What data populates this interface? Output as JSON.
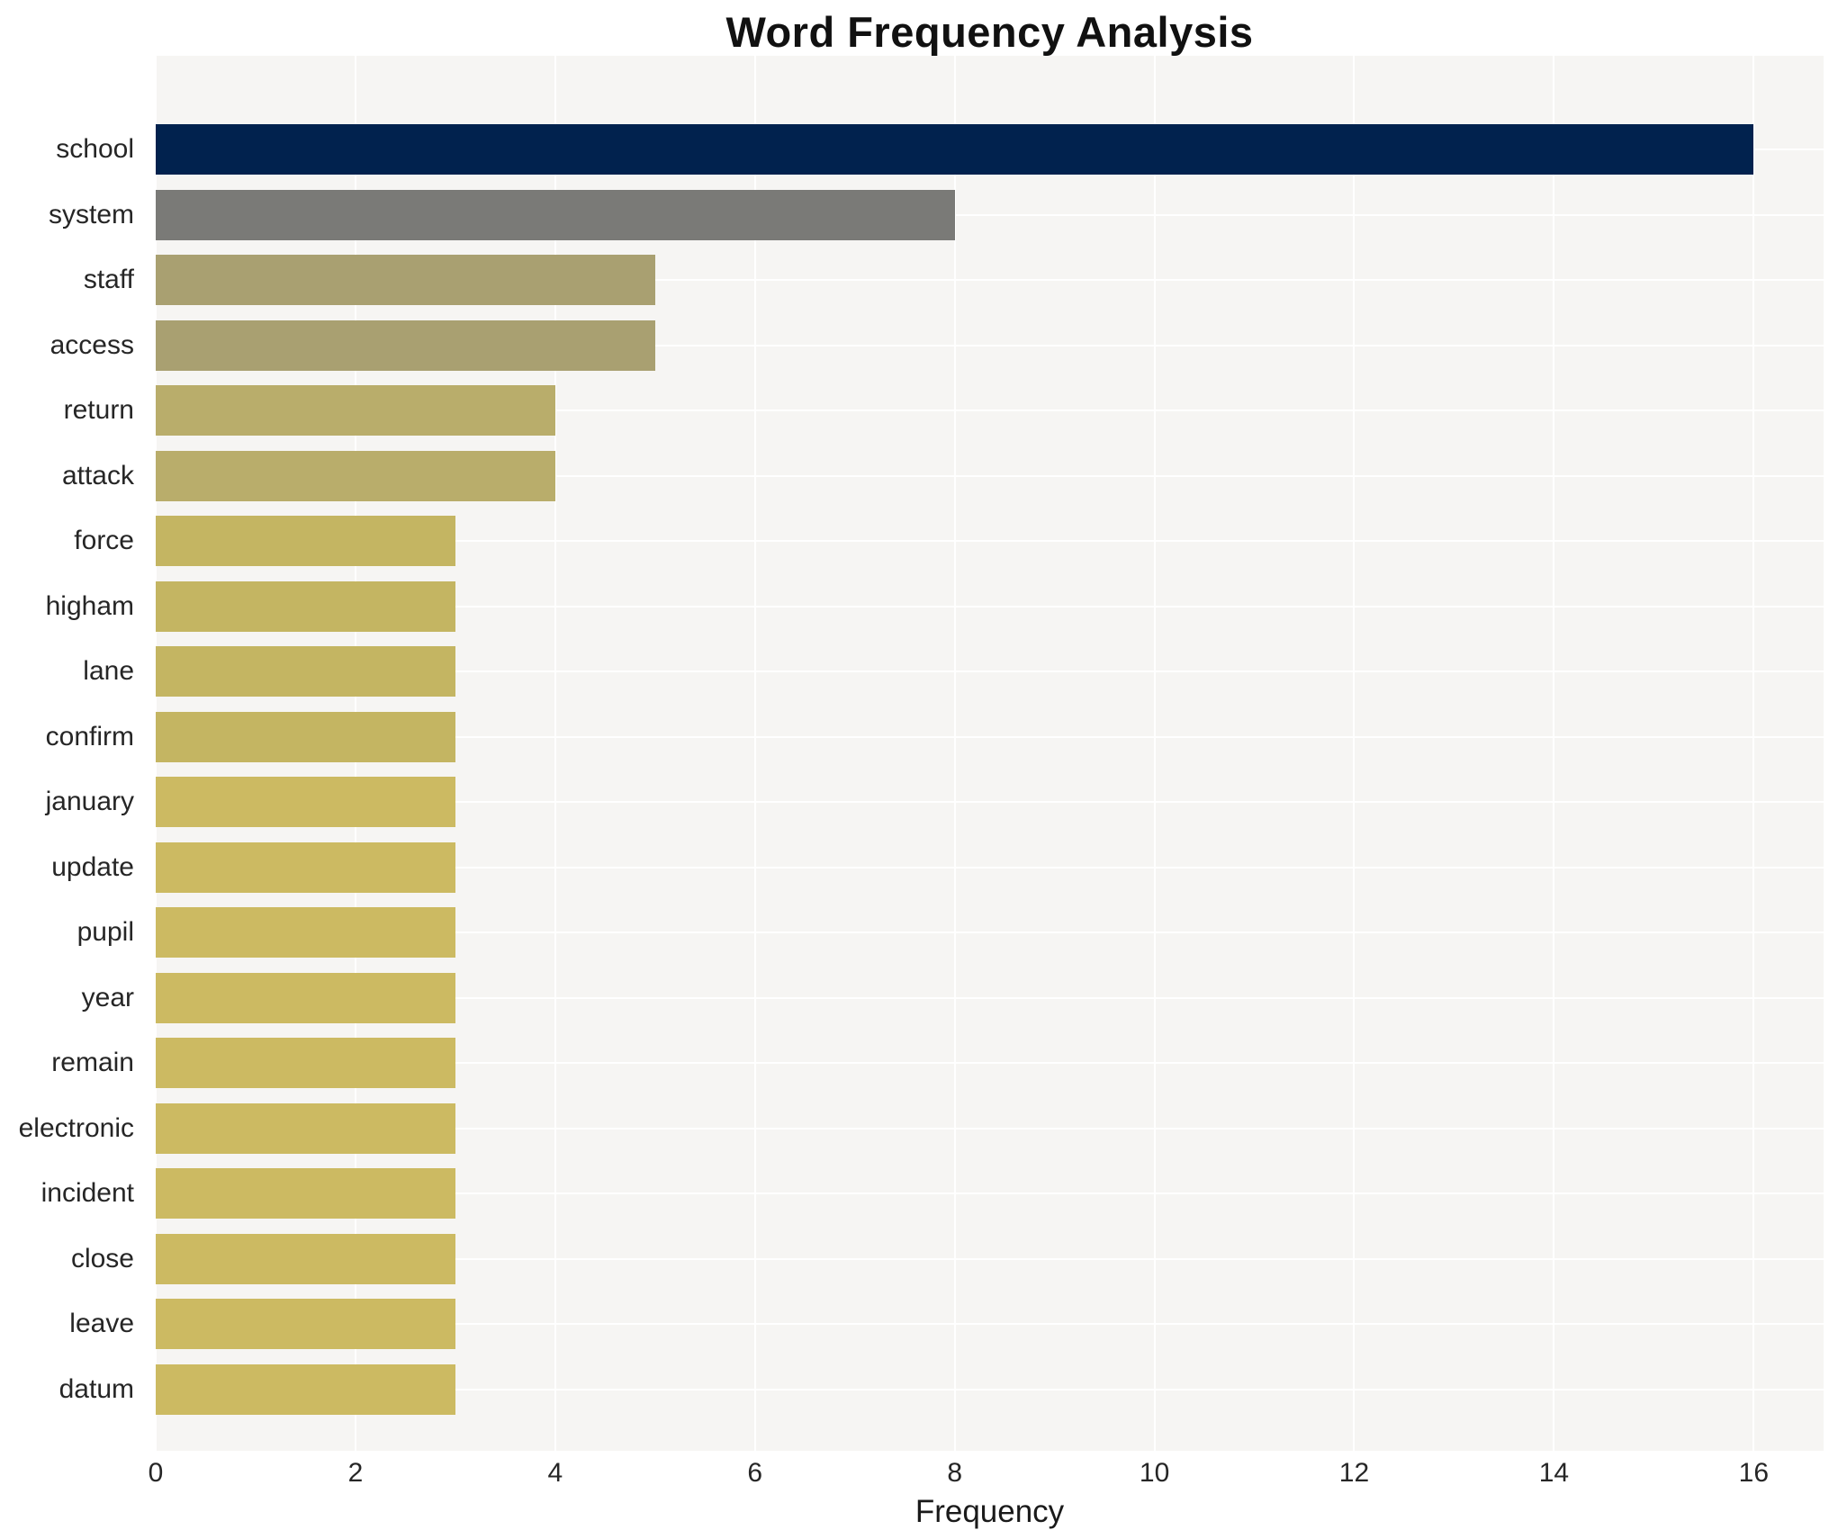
{
  "chart_data": {
    "type": "bar",
    "orientation": "horizontal",
    "title": "Word Frequency Analysis",
    "xlabel": "Frequency",
    "ylabel": "",
    "categories": [
      "school",
      "system",
      "staff",
      "access",
      "return",
      "attack",
      "force",
      "higham",
      "lane",
      "confirm",
      "january",
      "update",
      "pupil",
      "year",
      "remain",
      "electronic",
      "incident",
      "close",
      "leave",
      "datum"
    ],
    "values": [
      16,
      8,
      5,
      5,
      4,
      4,
      3,
      3,
      3,
      3,
      3,
      3,
      3,
      3,
      3,
      3,
      3,
      3,
      3,
      3
    ],
    "bar_colors": [
      "#01224e",
      "#7a7a77",
      "#a9a071",
      "#a9a071",
      "#b9ad6b",
      "#b9ad6b",
      "#c4b562",
      "#c4b562",
      "#c4b562",
      "#c4b562",
      "#ccba62",
      "#ccba62",
      "#ccba62",
      "#ccba62",
      "#ccba62",
      "#ccba62",
      "#ccba62",
      "#ccba62",
      "#ccba62",
      "#ccba62"
    ],
    "xticks": [
      0,
      2,
      4,
      6,
      8,
      10,
      12,
      14,
      16
    ],
    "xlim": [
      0,
      16.7
    ],
    "grid": "on",
    "gridline_color": "#ffffff",
    "plot_background": "#f6f5f3",
    "legend": "none"
  }
}
